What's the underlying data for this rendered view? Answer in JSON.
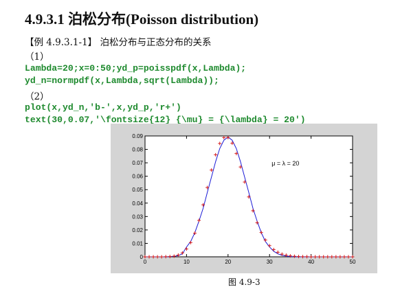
{
  "section_heading": "4.9.3.1 泊松分布(Poisson distribution)",
  "example_title": "【例 4.9.3.1-1】 泊松分布与正态分布的关系",
  "step1_label": "（1）",
  "code_line1": "Lambda=20;x=0:50;yd_p=poisspdf(x,Lambda);",
  "code_line2": "yd_n=normpdf(x,Lambda,sqrt(Lambda));",
  "step2_label": "（2）",
  "code_line3": "plot(x,yd_n,'b-',x,yd_p,'r+')",
  "code_line4": "text(30,0.07,'\\fontsize{12} {\\mu} = {\\lambda} = 20')",
  "figure_caption": "图 4.9-3",
  "colors": {
    "code_green": "#1e8a2e",
    "figure_background": "#d4d4d4",
    "normal_line": "#1a1ad6",
    "poisson_marker": "#d41a1a"
  },
  "chart_data": {
    "type": "line",
    "title": "",
    "xlabel": "",
    "ylabel": "",
    "xlim": [
      0,
      50
    ],
    "ylim": [
      0,
      0.09
    ],
    "x_ticks": [
      0,
      10,
      20,
      30,
      40,
      50
    ],
    "y_ticks": [
      0,
      0.01,
      0.02,
      0.03,
      0.04,
      0.05,
      0.06,
      0.07,
      0.08,
      0.09
    ],
    "x_tick_labels": [
      "0",
      "10",
      "20",
      "30",
      "40",
      "50"
    ],
    "y_tick_labels": [
      "0",
      "0.01",
      "0.02",
      "0.03",
      "0.04",
      "0.05",
      "0.06",
      "0.07",
      "0.08",
      "0.09"
    ],
    "annotation": {
      "text": "μ = λ = 20",
      "x": 30,
      "y": 0.07
    },
    "grid": false,
    "x": [
      0,
      1,
      2,
      3,
      4,
      5,
      6,
      7,
      8,
      9,
      10,
      11,
      12,
      13,
      14,
      15,
      16,
      17,
      18,
      19,
      20,
      21,
      22,
      23,
      24,
      25,
      26,
      27,
      28,
      29,
      30,
      31,
      32,
      33,
      34,
      35,
      36,
      37,
      38,
      39,
      40,
      41,
      42,
      43,
      44,
      45,
      46,
      47,
      48,
      49,
      50
    ],
    "series": [
      {
        "style": "blue solid line",
        "values": [
          0.0,
          0.0,
          0.0,
          0.0,
          0.0,
          0.0,
          0.0001,
          0.0004,
          0.0009,
          0.0022,
          0.0073,
          0.0114,
          0.018,
          0.0266,
          0.0361,
          0.0479,
          0.0593,
          0.0708,
          0.0806,
          0.0868,
          0.0892,
          0.0868,
          0.0806,
          0.0708,
          0.0593,
          0.0479,
          0.0361,
          0.0266,
          0.018,
          0.0114,
          0.0073,
          0.0041,
          0.0022,
          0.0011,
          0.0005,
          0.0002,
          0.0001,
          0.0,
          0.0,
          0.0,
          0.0,
          0.0,
          0.0,
          0.0,
          0.0,
          0.0,
          0.0,
          0.0,
          0.0,
          0.0,
          0.0
        ]
      },
      {
        "style": "red plus markers",
        "values": [
          0.0,
          0.0,
          0.0,
          0.0,
          0.0,
          0.0001,
          0.0002,
          0.0005,
          0.0013,
          0.0029,
          0.0058,
          0.0106,
          0.0176,
          0.0271,
          0.0387,
          0.0516,
          0.0646,
          0.076,
          0.0844,
          0.0888,
          0.0888,
          0.0846,
          0.0769,
          0.0669,
          0.0557,
          0.0446,
          0.0343,
          0.0254,
          0.0181,
          0.0125,
          0.0083,
          0.0054,
          0.0034,
          0.002,
          0.0012,
          0.0007,
          0.0004,
          0.0002,
          0.0001,
          0.0001,
          0.0,
          0.0,
          0.0,
          0.0,
          0.0,
          0.0,
          0.0,
          0.0,
          0.0,
          0.0,
          0.0
        ]
      }
    ]
  }
}
